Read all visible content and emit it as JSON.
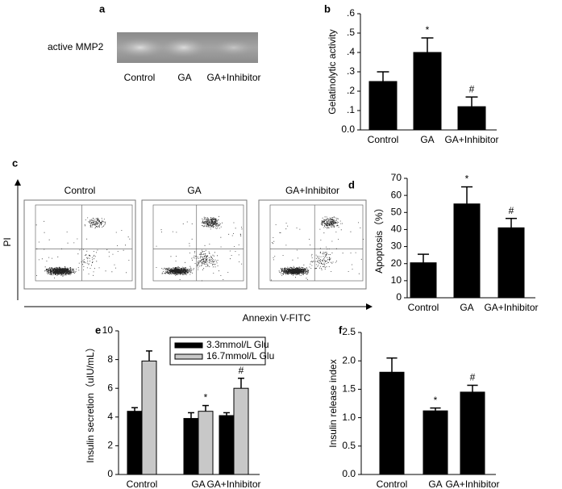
{
  "gel": {
    "panel_label": "a",
    "row_label": "active MMP2",
    "lanes": [
      "Control",
      "GA",
      "GA+Inhibitor"
    ]
  },
  "flow": {
    "panel_label": "c",
    "plots": [
      "Control",
      "GA",
      "GA+Inhibitor"
    ],
    "y_axis_label": "PI",
    "x_axis_label": "Annexin V-FITC"
  },
  "chart_data": [
    {
      "type": "bar",
      "panel_label": "b",
      "ylabel": "Gelatinolytic activity",
      "categories": [
        "Control",
        "GA",
        "GA+Inhibitor"
      ],
      "values": [
        0.25,
        0.4,
        0.12
      ],
      "errors": [
        0.05,
        0.075,
        0.05
      ],
      "markers": [
        null,
        "*",
        "#"
      ],
      "color": "#000000",
      "ylim": [
        0,
        0.6
      ],
      "yticks": [
        {
          "value": 0,
          "label": "0.0"
        },
        {
          "value": 0.1,
          "label": ".1"
        },
        {
          "value": 0.2,
          "label": ".2"
        },
        {
          "value": 0.3,
          "label": ".3"
        },
        {
          "value": 0.4,
          "label": ".4"
        },
        {
          "value": 0.5,
          "label": ".5"
        },
        {
          "value": 0.6,
          "label": ".6"
        }
      ]
    },
    {
      "type": "bar",
      "panel_label": "d",
      "ylabel": "Apoptosis（%）",
      "categories": [
        "Control",
        "GA",
        "GA+Inhibitor"
      ],
      "values": [
        20.5,
        55,
        41
      ],
      "errors": [
        5,
        10,
        5.5
      ],
      "markers": [
        null,
        "*",
        "#"
      ],
      "color": "#000000",
      "ylim": [
        0,
        70
      ],
      "yticks": [
        0,
        10,
        20,
        30,
        40,
        50,
        60,
        70
      ]
    },
    {
      "type": "bar",
      "panel_label": "e",
      "ylabel": "Insulin secretion（uIU/mL）",
      "categories": [
        "Control",
        "GA",
        "GA+Inhibitor"
      ],
      "series": [
        {
          "name": "3.3mmol/L Glu",
          "color": "#000000",
          "values": [
            4.4,
            3.9,
            4.1
          ],
          "errors": [
            0.25,
            0.4,
            0.2
          ]
        },
        {
          "name": "16.7mmol/L Glu",
          "color": "#c8c8c8",
          "values": [
            7.9,
            4.4,
            6.0
          ],
          "errors": [
            0.7,
            0.4,
            0.7
          ],
          "markers": [
            null,
            "*",
            "#"
          ]
        }
      ],
      "ylim": [
        0,
        10
      ],
      "yticks": [
        0,
        2,
        4,
        6,
        8,
        10
      ]
    },
    {
      "type": "bar",
      "panel_label": "f",
      "ylabel": "Insulin release index",
      "categories": [
        "Control",
        "GA",
        "GA+Inhibitor"
      ],
      "values": [
        1.8,
        1.12,
        1.45
      ],
      "errors": [
        0.25,
        0.05,
        0.12
      ],
      "markers": [
        null,
        "*",
        "#"
      ],
      "color": "#000000",
      "ylim": [
        0,
        2.5
      ],
      "yticks": [
        {
          "value": 0,
          "label": "0.0"
        },
        0.5,
        {
          "value": 1,
          "label": "1.0"
        },
        1.5,
        {
          "value": 2,
          "label": "2.0"
        },
        2.5
      ]
    }
  ]
}
